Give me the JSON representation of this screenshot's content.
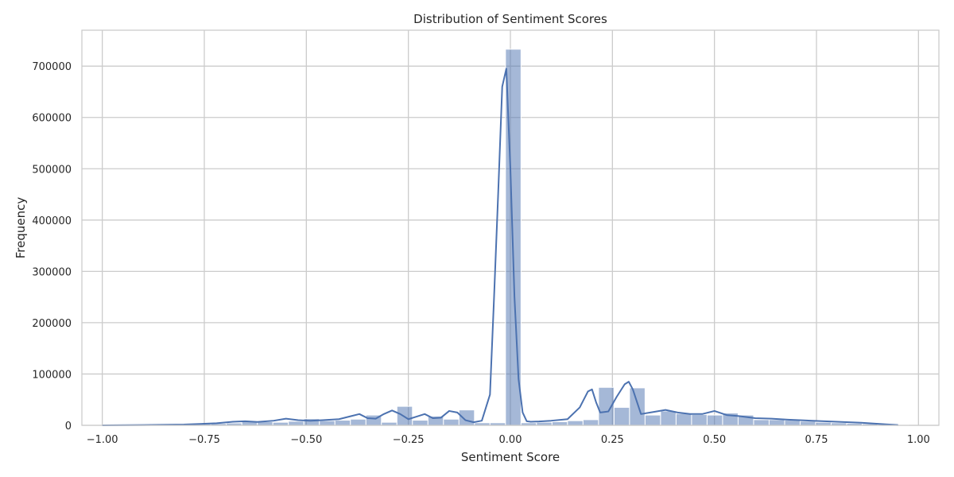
{
  "chart_data": {
    "type": "bar",
    "title": "Distribution of Sentiment Scores",
    "xlabel": "Sentiment Score",
    "ylabel": "Frequency",
    "xlim": [
      -1.05,
      1.05
    ],
    "ylim": [
      0,
      770000
    ],
    "xticks": [
      -1.0,
      -0.75,
      -0.5,
      -0.25,
      0.0,
      0.25,
      0.5,
      0.75,
      1.0
    ],
    "xtick_labels": [
      "−1.00",
      "−0.75",
      "−0.50",
      "−0.25",
      "0.00",
      "0.25",
      "0.50",
      "0.75",
      "1.00"
    ],
    "yticks": [
      0,
      100000,
      200000,
      300000,
      400000,
      500000,
      600000,
      700000
    ],
    "ytick_labels": [
      "0",
      "100000",
      "200000",
      "300000",
      "400000",
      "500000",
      "600000",
      "700000"
    ],
    "grid": true,
    "bin_width": 0.038,
    "bins": [
      {
        "x0": -1.0,
        "value": 500
      },
      {
        "x0": -0.962,
        "value": 700
      },
      {
        "x0": -0.924,
        "value": 900
      },
      {
        "x0": -0.886,
        "value": 1500
      },
      {
        "x0": -0.848,
        "value": 2000
      },
      {
        "x0": -0.81,
        "value": 2500
      },
      {
        "x0": -0.772,
        "value": 3000
      },
      {
        "x0": -0.734,
        "value": 3500
      },
      {
        "x0": -0.696,
        "value": 4500
      },
      {
        "x0": -0.658,
        "value": 8000
      },
      {
        "x0": -0.62,
        "value": 7000
      },
      {
        "x0": -0.582,
        "value": 6000
      },
      {
        "x0": -0.544,
        "value": 8000
      },
      {
        "x0": -0.506,
        "value": 13000
      },
      {
        "x0": -0.468,
        "value": 9000
      },
      {
        "x0": -0.43,
        "value": 10000
      },
      {
        "x0": -0.392,
        "value": 12000
      },
      {
        "x0": -0.354,
        "value": 20000
      },
      {
        "x0": -0.316,
        "value": 6000
      },
      {
        "x0": -0.278,
        "value": 37000
      },
      {
        "x0": -0.24,
        "value": 10000
      },
      {
        "x0": -0.202,
        "value": 18000
      },
      {
        "x0": -0.164,
        "value": 12000
      },
      {
        "x0": -0.126,
        "value": 30000
      },
      {
        "x0": -0.088,
        "value": 5000
      },
      {
        "x0": -0.05,
        "value": 5000
      },
      {
        "x0": -0.012,
        "value": 733000
      },
      {
        "x0": 0.026,
        "value": 5000
      },
      {
        "x0": 0.064,
        "value": 6000
      },
      {
        "x0": 0.102,
        "value": 7000
      },
      {
        "x0": 0.14,
        "value": 9000
      },
      {
        "x0": 0.178,
        "value": 11000
      },
      {
        "x0": 0.216,
        "value": 74000
      },
      {
        "x0": 0.254,
        "value": 35000
      },
      {
        "x0": 0.292,
        "value": 73000
      },
      {
        "x0": 0.33,
        "value": 20000
      },
      {
        "x0": 0.368,
        "value": 28000
      },
      {
        "x0": 0.406,
        "value": 23000
      },
      {
        "x0": 0.444,
        "value": 21000
      },
      {
        "x0": 0.482,
        "value": 20000
      },
      {
        "x0": 0.52,
        "value": 24000
      },
      {
        "x0": 0.558,
        "value": 20000
      },
      {
        "x0": 0.596,
        "value": 11000
      },
      {
        "x0": 0.634,
        "value": 11000
      },
      {
        "x0": 0.672,
        "value": 10000
      },
      {
        "x0": 0.71,
        "value": 8000
      },
      {
        "x0": 0.748,
        "value": 6000
      },
      {
        "x0": 0.786,
        "value": 5000
      },
      {
        "x0": 0.824,
        "value": 4000
      },
      {
        "x0": 0.862,
        "value": 3000
      },
      {
        "x0": 0.9,
        "value": 2000
      },
      {
        "x0": 0.938,
        "value": 1000
      }
    ],
    "kde": {
      "x": [
        -1.0,
        -0.9,
        -0.8,
        -0.72,
        -0.68,
        -0.65,
        -0.62,
        -0.58,
        -0.55,
        -0.52,
        -0.49,
        -0.46,
        -0.42,
        -0.39,
        -0.37,
        -0.35,
        -0.33,
        -0.31,
        -0.29,
        -0.27,
        -0.25,
        -0.23,
        -0.21,
        -0.19,
        -0.17,
        -0.15,
        -0.13,
        -0.11,
        -0.09,
        -0.07,
        -0.05,
        -0.04,
        -0.03,
        -0.02,
        -0.01,
        0.0,
        0.01,
        0.02,
        0.03,
        0.04,
        0.05,
        0.07,
        0.1,
        0.14,
        0.17,
        0.19,
        0.2,
        0.21,
        0.22,
        0.24,
        0.26,
        0.28,
        0.29,
        0.3,
        0.32,
        0.35,
        0.38,
        0.41,
        0.44,
        0.47,
        0.5,
        0.53,
        0.56,
        0.6,
        0.64,
        0.68,
        0.74,
        0.8,
        0.86,
        0.92,
        0.95
      ],
      "y": [
        0,
        500,
        1500,
        4000,
        7000,
        8000,
        6500,
        9000,
        13000,
        10000,
        9000,
        10000,
        12000,
        18000,
        22000,
        14000,
        13000,
        22000,
        29000,
        22000,
        12000,
        17000,
        22000,
        14000,
        15000,
        28000,
        25000,
        10000,
        6000,
        9000,
        60000,
        250000,
        450000,
        660000,
        695000,
        500000,
        250000,
        90000,
        25000,
        8000,
        7000,
        7500,
        9000,
        12000,
        35000,
        66000,
        70000,
        45000,
        25000,
        27000,
        55000,
        80000,
        85000,
        70000,
        22000,
        26000,
        30000,
        25000,
        22000,
        22000,
        28000,
        20000,
        18000,
        14000,
        13000,
        11000,
        9000,
        7000,
        5000,
        2000,
        500
      ]
    }
  }
}
